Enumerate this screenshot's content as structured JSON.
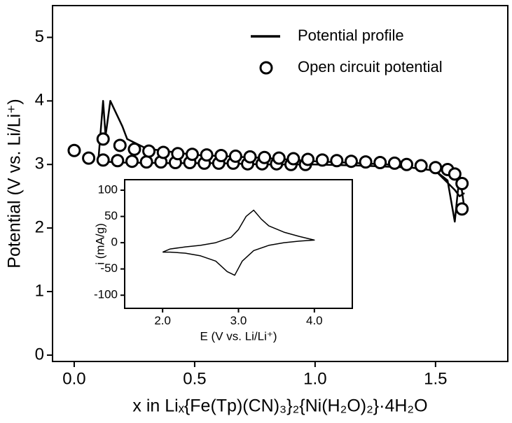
{
  "chart_data": [
    {
      "type": "line",
      "xlabel": "x in Liₓ{Fe(Tp)(CN)₃}₂{Ni(H₂O)₂}·4H₂O",
      "ylabel": "Potential (V vs. Li/Li⁺)",
      "xlim": [
        -0.09,
        1.8
      ],
      "ylim": [
        -0.1,
        5.5
      ],
      "xticks": [
        {
          "value": 0,
          "label": "0.0"
        },
        {
          "value": 0.5,
          "label": "0.5"
        },
        {
          "value": 1,
          "label": "1.0"
        },
        {
          "value": 1.5,
          "label": "1.5"
        }
      ],
      "yticks": [
        0,
        1,
        2,
        3,
        4,
        5
      ],
      "legend": "upper right",
      "series": [
        {
          "name": "Potential profile",
          "style": "line",
          "color": "#000000",
          "x": [
            1.62,
            1.6,
            1.58,
            1.55,
            1.5,
            1.4,
            1.2,
            1.0,
            0.8,
            0.6,
            0.4,
            0.2,
            0.1,
            0.12,
            0.13,
            0.15,
            0.2,
            0.22,
            0.3,
            0.5,
            0.8,
            1.0,
            1.3,
            1.5,
            1.58,
            1.6,
            1.62
          ],
          "values": [
            2.3,
            2.85,
            2.1,
            2.75,
            2.9,
            2.95,
            2.98,
            3.0,
            3.0,
            3.02,
            3.02,
            3.03,
            3.05,
            4.0,
            3.45,
            4.0,
            3.6,
            3.4,
            3.25,
            3.15,
            3.1,
            3.05,
            3.0,
            2.9,
            2.6,
            2.5,
            2.55
          ]
        },
        {
          "name": "Open circuit potential",
          "style": "markers",
          "color": "#000000",
          "x": [
            0.06,
            0.12,
            0.18,
            0.24,
            0.3,
            0.36,
            0.42,
            0.48,
            0.54,
            0.6,
            0.66,
            0.72,
            0.78,
            0.84,
            0.9,
            0.96,
            0.0,
            0.12,
            0.19,
            0.25,
            0.31,
            0.37,
            0.43,
            0.49,
            0.55,
            0.61,
            0.67,
            0.73,
            0.79,
            0.85,
            0.91,
            0.97,
            1.03,
            1.09,
            1.15,
            1.21,
            1.27,
            1.33,
            1.38,
            1.44,
            1.5,
            1.55,
            1.58,
            1.61,
            1.61
          ],
          "values": [
            3.1,
            3.07,
            3.06,
            3.05,
            3.04,
            3.04,
            3.03,
            3.03,
            3.02,
            3.02,
            3.02,
            3.01,
            3.01,
            3.01,
            3.0,
            3.0,
            3.22,
            3.4,
            3.3,
            3.24,
            3.21,
            3.19,
            3.17,
            3.16,
            3.15,
            3.14,
            3.13,
            3.12,
            3.11,
            3.1,
            3.09,
            3.08,
            3.07,
            3.06,
            3.05,
            3.04,
            3.03,
            3.02,
            3.0,
            2.98,
            2.95,
            2.92,
            2.85,
            2.7,
            2.3
          ]
        }
      ]
    },
    {
      "type": "line",
      "xlabel": "E (V vs. Li/Li⁺)",
      "ylabel": "i (mA/g)",
      "xlim": [
        1.5,
        4.5
      ],
      "ylim": [
        -125,
        120
      ],
      "xticks": [
        {
          "value": 2,
          "label": "2.0"
        },
        {
          "value": 3,
          "label": "3.0"
        },
        {
          "value": 4,
          "label": "4.0"
        }
      ],
      "yticks": [
        -100,
        -50,
        0,
        50,
        100
      ],
      "series": [
        {
          "style": "line",
          "color": "#000000",
          "x": [
            2.0,
            2.1,
            2.3,
            2.5,
            2.7,
            2.9,
            3.0,
            3.1,
            3.2,
            3.3,
            3.4,
            3.6,
            3.8,
            4.0,
            3.8,
            3.6,
            3.4,
            3.2,
            3.05,
            2.95,
            2.85,
            2.7,
            2.5,
            2.3,
            2.1,
            2.0
          ],
          "values": [
            -18,
            -12,
            -8,
            -5,
            0,
            10,
            25,
            50,
            62,
            45,
            32,
            20,
            12,
            5,
            3,
            0,
            -5,
            -15,
            -35,
            -62,
            -55,
            -35,
            -25,
            -20,
            -18,
            -18
          ]
        }
      ]
    }
  ]
}
